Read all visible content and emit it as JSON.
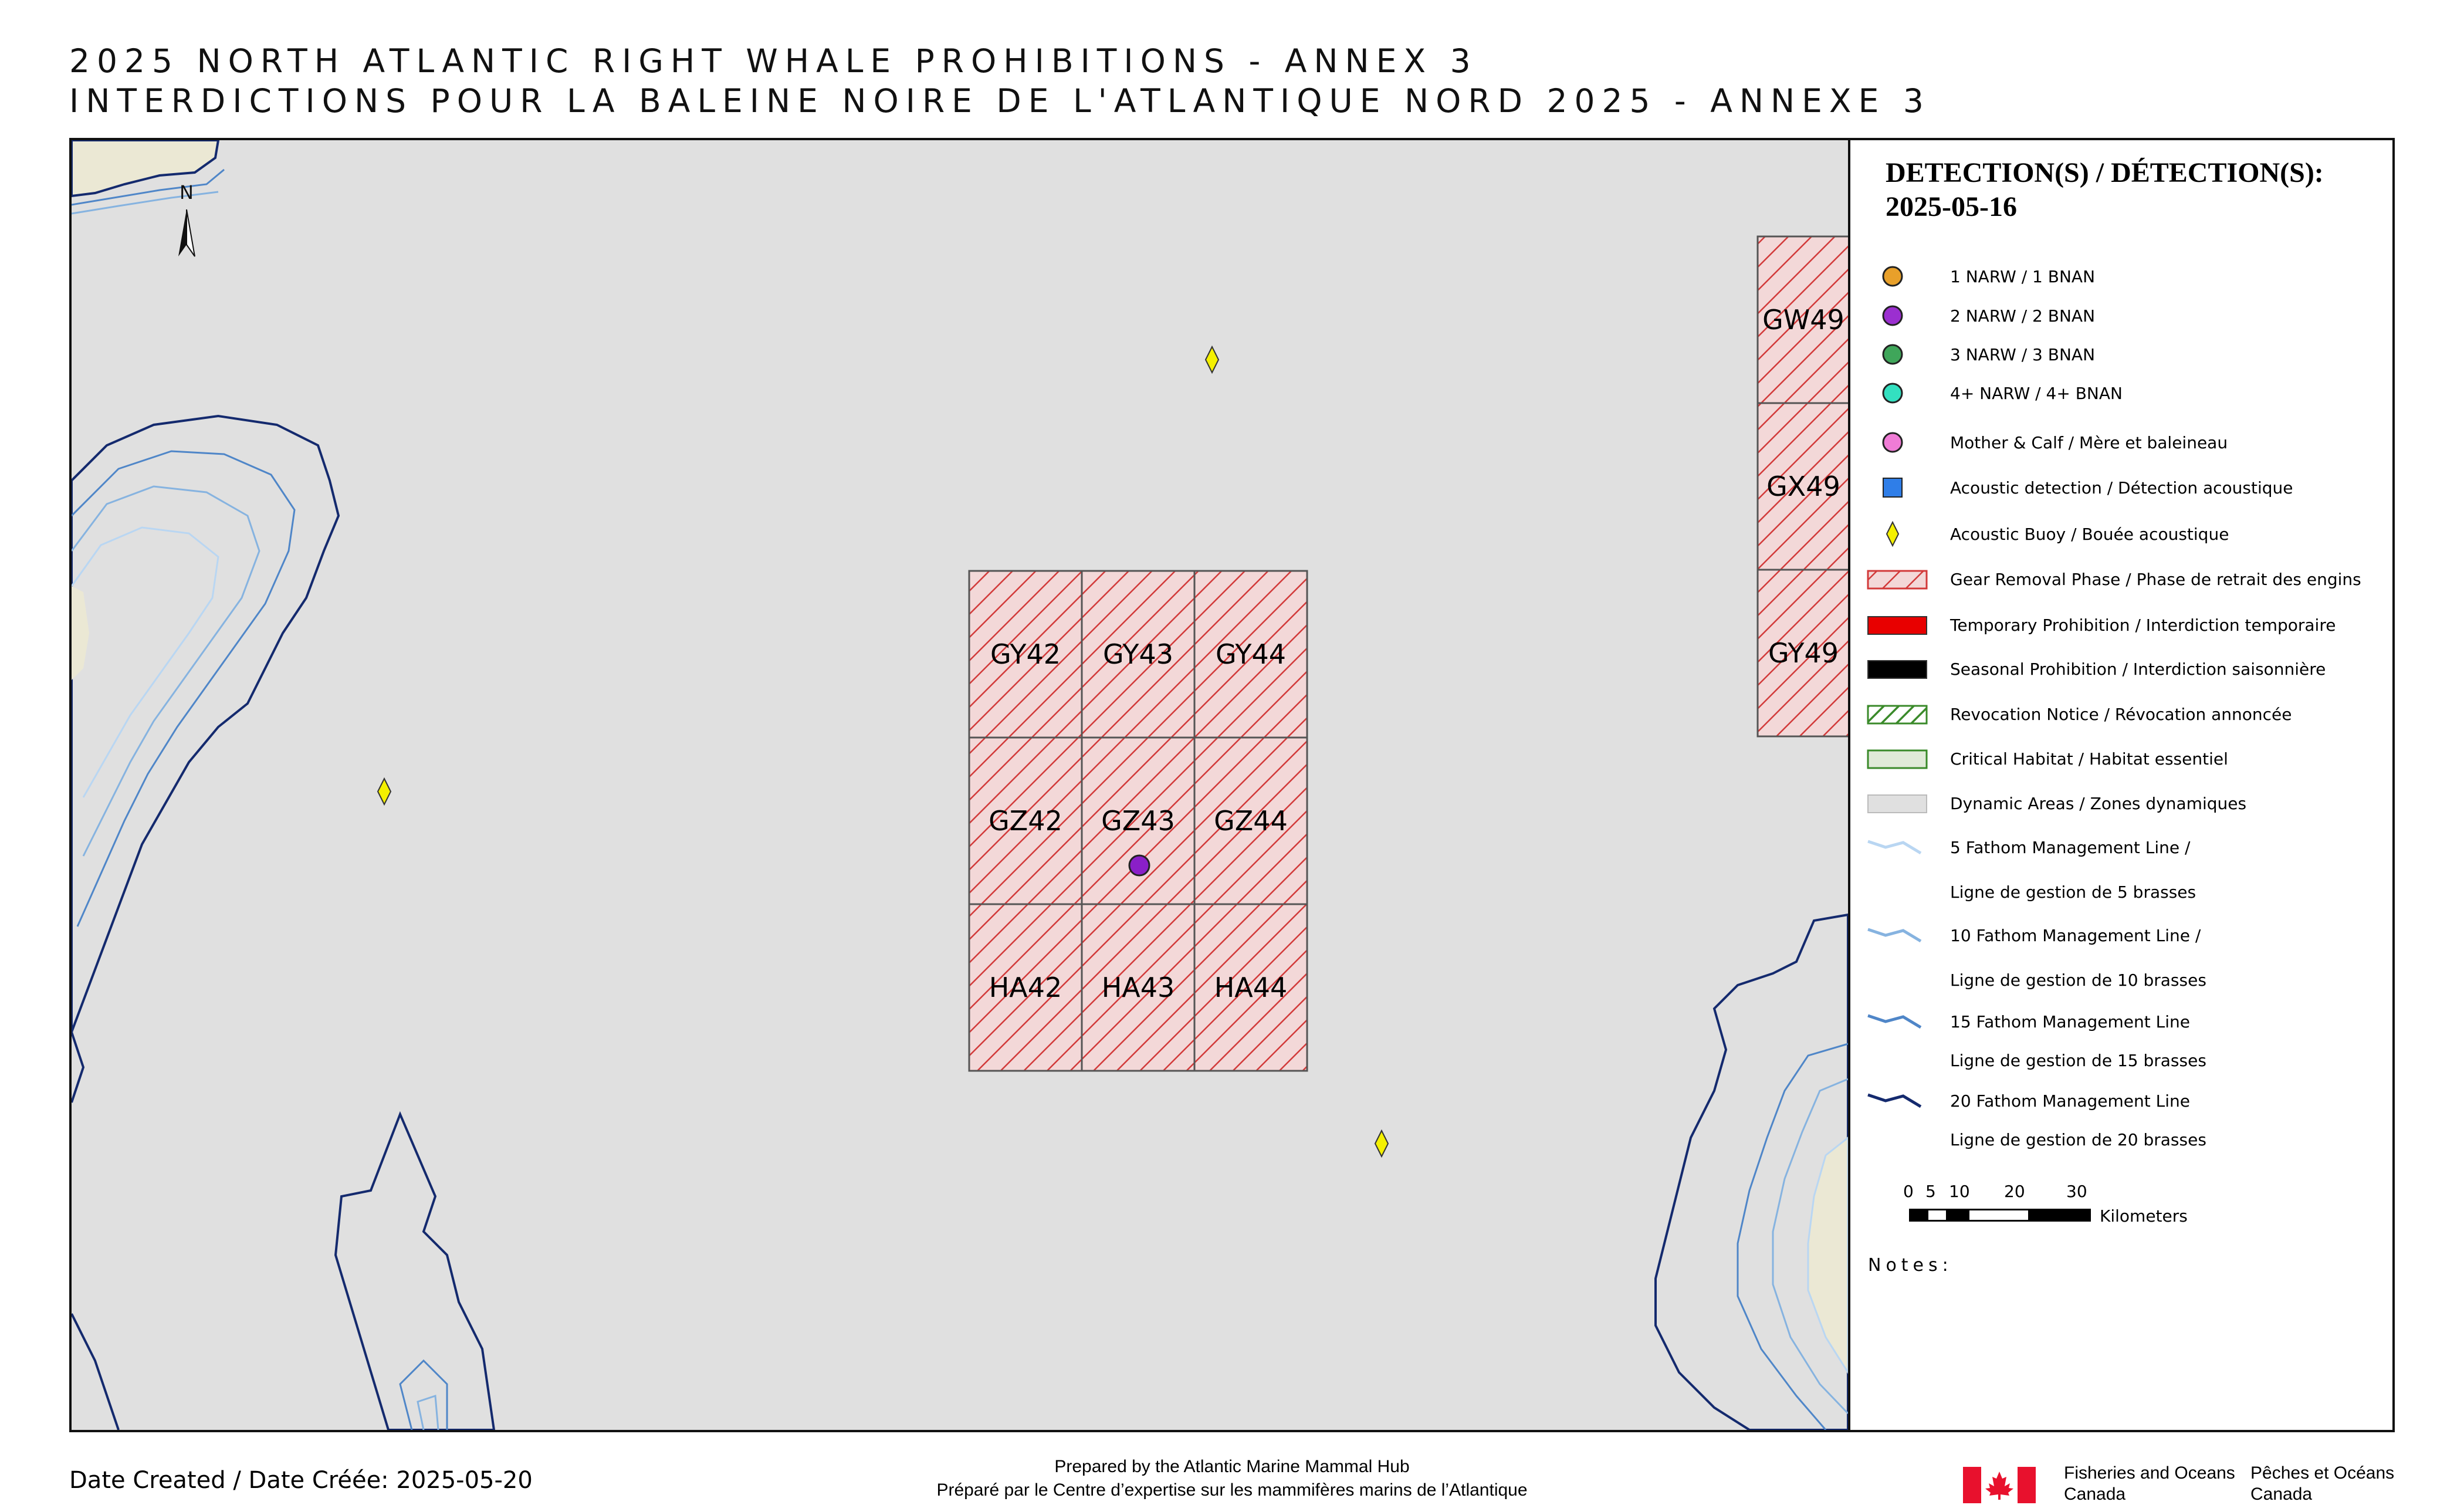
{
  "title": {
    "line1": "2025 NORTH ATLANTIC RIGHT WHALE PROHIBITIONS - ANNEX 3",
    "line2": "INTERDICTIONS POUR LA BALEINE NOIRE DE L'ATLANTIQUE NORD 2025 - ANNEXE 3"
  },
  "map": {
    "north_arrow_label": "N",
    "colors": {
      "sea": "#e0e0e0",
      "land": "#ebe8d4",
      "hatch": "#d23a3a",
      "zone_fill": "#f3d8d8",
      "coast": "#142a6e"
    },
    "grid_cells": [
      {
        "id": "GY42"
      },
      {
        "id": "GY43"
      },
      {
        "id": "GY44"
      },
      {
        "id": "GZ42"
      },
      {
        "id": "GZ43"
      },
      {
        "id": "GZ44"
      },
      {
        "id": "HA42"
      },
      {
        "id": "HA43"
      },
      {
        "id": "HA44"
      }
    ],
    "edge_cells": [
      {
        "id": "GW49"
      },
      {
        "id": "GX49"
      },
      {
        "id": "GY49"
      }
    ],
    "detections": [
      {
        "type": "2 NARW / 2 BNAN",
        "cell": "GZ43",
        "color": "#8a1fc8"
      }
    ],
    "acoustic_buoys": 3
  },
  "legend": {
    "heading_line1": "DETECTION(S) / DÉTECTION(S):",
    "heading_line2": "2025-05-16",
    "items": [
      {
        "label": "1 NARW / 1 BNAN",
        "color": "#e8a02a",
        "icon": "circle"
      },
      {
        "label": "2 NARW / 2 BNAN",
        "color": "#9b2fd0",
        "icon": "circle"
      },
      {
        "label": "3 NARW / 3 BNAN",
        "color": "#3fa65a",
        "icon": "circle"
      },
      {
        "label": "4+ NARW / 4+ BNAN",
        "color": "#33e0c0",
        "icon": "circle"
      },
      {
        "label": "Mother & Calf / Mère et baleineau",
        "color": "#f07cd6",
        "icon": "circle"
      },
      {
        "label": "Acoustic detection / Détection acoustique",
        "color": "#2f7ee8",
        "icon": "square"
      },
      {
        "label": "Acoustic Buoy / Bouée acoustique",
        "color": "#f4f000",
        "icon": "diamond"
      },
      {
        "label": "Gear Removal Phase / Phase de retrait des engins",
        "color": "#d23a3a",
        "icon": "hatch-red"
      },
      {
        "label": "Temporary Prohibition / Interdiction temporaire",
        "color": "#e80000",
        "icon": "solid"
      },
      {
        "label": "Seasonal Prohibition / Interdiction saisonnière",
        "color": "#000000",
        "icon": "solid"
      },
      {
        "label": "Revocation Notice / Révocation annoncée",
        "color": "#3a8a2a",
        "icon": "hatch-green"
      },
      {
        "label": "Critical Habitat / Habitat essentiel",
        "color": "#3a8a2a",
        "icon": "outline"
      },
      {
        "label": "Dynamic Areas / Zones dynamiques",
        "color": "#e0e0e0",
        "icon": "grey"
      }
    ],
    "fathom_lines": [
      {
        "label1": "5 Fathom Management Line /",
        "label2": "Ligne de gestion de 5 brasses",
        "color": "#b9d6f2"
      },
      {
        "label1": "10 Fathom Management Line /",
        "label2": "Ligne de gestion de 10 brasses",
        "color": "#86b3e0"
      },
      {
        "label1": "15 Fathom Management Line",
        "label2": "Ligne de gestion de 15 brasses",
        "color": "#4f86c8"
      },
      {
        "label1": "20 Fathom Management Line",
        "label2": "Ligne de gestion de 20 brasses",
        "color": "#142a6e"
      }
    ],
    "scale": {
      "ticks": [
        "0",
        "5",
        "10",
        "20",
        "30"
      ],
      "unit": "Kilometers"
    },
    "notes_label": "Notes:"
  },
  "footer": {
    "date_created": "Date Created / Date Créée: 2025-05-20",
    "prepared_en": "Prepared by the Atlantic Marine Mammal Hub",
    "prepared_fr": "Préparé par le Centre d’expertise sur les mammifères marins de l’Atlantique",
    "agency_en_line1": "Fisheries and Oceans",
    "agency_en_line2": "Canada",
    "agency_fr_line1": "Pêches et Océans",
    "agency_fr_line2": "Canada"
  }
}
